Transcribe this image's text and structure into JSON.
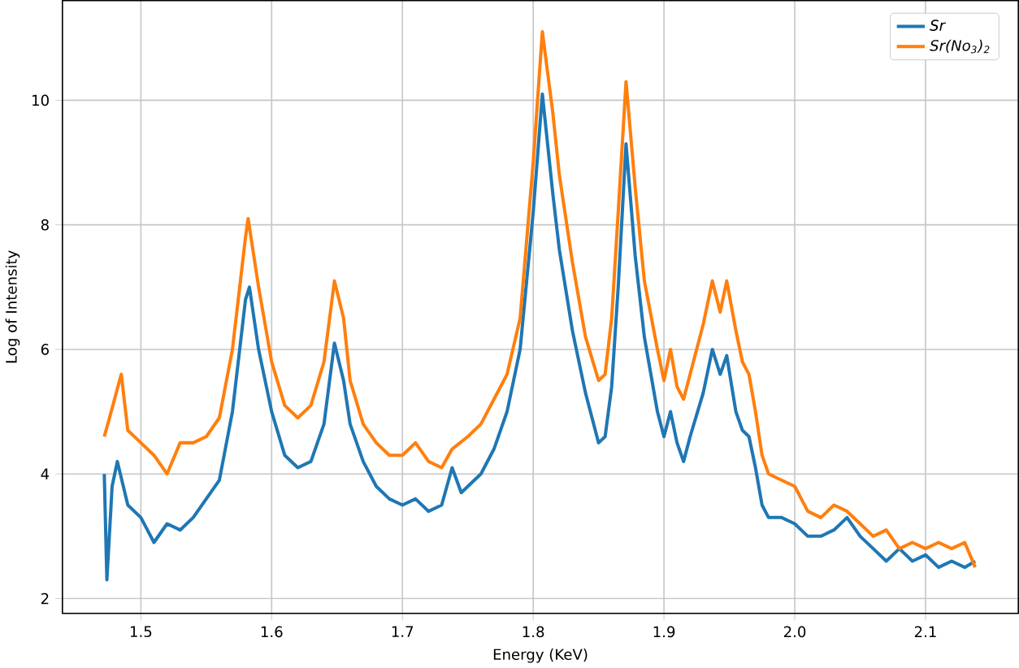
{
  "chart_data": {
    "type": "line",
    "xlabel": "Energy (KeV)",
    "ylabel": "Log of Intensity",
    "xlim": [
      1.44,
      2.171
    ],
    "ylim": [
      1.76,
      11.6
    ],
    "xticks": [
      {
        "value": 1.5,
        "label": "1.5"
      },
      {
        "value": 1.6,
        "label": "1.6"
      },
      {
        "value": 1.7,
        "label": "1.7"
      },
      {
        "value": 1.8,
        "label": "1.8"
      },
      {
        "value": 1.9,
        "label": "1.9"
      },
      {
        "value": 2.0,
        "label": "2.0"
      },
      {
        "value": 2.1,
        "label": "2.1"
      }
    ],
    "yticks": [
      2,
      4,
      6,
      8,
      10
    ],
    "grid": true,
    "legend": "top right",
    "series": [
      {
        "name": "Sr",
        "color": "#1f77b4",
        "x": [
          1.472,
          1.474,
          1.478,
          1.482,
          1.49,
          1.5,
          1.51,
          1.52,
          1.53,
          1.54,
          1.55,
          1.56,
          1.57,
          1.58,
          1.583,
          1.59,
          1.6,
          1.61,
          1.62,
          1.63,
          1.64,
          1.648,
          1.655,
          1.66,
          1.67,
          1.68,
          1.69,
          1.7,
          1.71,
          1.72,
          1.73,
          1.738,
          1.745,
          1.75,
          1.76,
          1.77,
          1.78,
          1.79,
          1.8,
          1.807,
          1.815,
          1.82,
          1.83,
          1.84,
          1.85,
          1.855,
          1.86,
          1.865,
          1.871,
          1.878,
          1.885,
          1.895,
          1.9,
          1.905,
          1.91,
          1.915,
          1.92,
          1.93,
          1.937,
          1.943,
          1.948,
          1.955,
          1.96,
          1.965,
          1.97,
          1.975,
          1.98,
          1.99,
          2.0,
          2.01,
          2.02,
          2.03,
          2.04,
          2.05,
          2.06,
          2.07,
          2.08,
          2.09,
          2.1,
          2.11,
          2.12,
          2.13,
          2.138
        ],
        "values": [
          4.0,
          2.3,
          3.8,
          4.2,
          3.5,
          3.3,
          2.9,
          3.2,
          3.1,
          3.3,
          3.6,
          3.9,
          5.0,
          6.8,
          7.0,
          6.0,
          5.0,
          4.3,
          4.1,
          4.2,
          4.8,
          6.1,
          5.5,
          4.8,
          4.2,
          3.8,
          3.6,
          3.5,
          3.6,
          3.4,
          3.5,
          4.1,
          3.7,
          3.8,
          4.0,
          4.4,
          5.0,
          6.0,
          8.2,
          10.1,
          8.5,
          7.6,
          6.3,
          5.3,
          4.5,
          4.6,
          5.4,
          7.0,
          9.3,
          7.5,
          6.2,
          5.0,
          4.6,
          5.0,
          4.5,
          4.2,
          4.6,
          5.3,
          6.0,
          5.6,
          5.9,
          5.0,
          4.7,
          4.6,
          4.1,
          3.5,
          3.3,
          3.3,
          3.2,
          3.0,
          3.0,
          3.1,
          3.3,
          3.0,
          2.8,
          2.6,
          2.8,
          2.6,
          2.7,
          2.5,
          2.6,
          2.5,
          2.6
        ]
      },
      {
        "name": "Sr(No$_{3}$)$_{2}$",
        "color": "#ff7f0e",
        "x": [
          1.472,
          1.476,
          1.485,
          1.49,
          1.5,
          1.51,
          1.52,
          1.53,
          1.54,
          1.55,
          1.56,
          1.57,
          1.58,
          1.582,
          1.59,
          1.6,
          1.61,
          1.62,
          1.63,
          1.64,
          1.648,
          1.655,
          1.66,
          1.67,
          1.68,
          1.69,
          1.7,
          1.71,
          1.72,
          1.73,
          1.738,
          1.75,
          1.76,
          1.77,
          1.78,
          1.79,
          1.8,
          1.807,
          1.815,
          1.82,
          1.83,
          1.84,
          1.85,
          1.855,
          1.86,
          1.865,
          1.871,
          1.878,
          1.885,
          1.895,
          1.9,
          1.905,
          1.91,
          1.915,
          1.92,
          1.93,
          1.937,
          1.943,
          1.948,
          1.955,
          1.96,
          1.965,
          1.97,
          1.975,
          1.98,
          1.99,
          2.0,
          2.01,
          2.02,
          2.03,
          2.04,
          2.05,
          2.06,
          2.07,
          2.08,
          2.09,
          2.1,
          2.11,
          2.12,
          2.13,
          2.138
        ],
        "values": [
          4.6,
          4.9,
          5.6,
          4.7,
          4.5,
          4.3,
          4.0,
          4.5,
          4.5,
          4.6,
          4.9,
          6.0,
          7.8,
          8.1,
          7.0,
          5.8,
          5.1,
          4.9,
          5.1,
          5.8,
          7.1,
          6.5,
          5.5,
          4.8,
          4.5,
          4.3,
          4.3,
          4.5,
          4.2,
          4.1,
          4.4,
          4.6,
          4.8,
          5.2,
          5.6,
          6.5,
          9.0,
          11.1,
          9.8,
          8.8,
          7.4,
          6.2,
          5.5,
          5.6,
          6.5,
          8.2,
          10.3,
          8.6,
          7.1,
          6.0,
          5.5,
          6.0,
          5.4,
          5.2,
          5.6,
          6.4,
          7.1,
          6.6,
          7.1,
          6.3,
          5.8,
          5.6,
          5.0,
          4.3,
          4.0,
          3.9,
          3.8,
          3.4,
          3.3,
          3.5,
          3.4,
          3.2,
          3.0,
          3.1,
          2.8,
          2.9,
          2.8,
          2.9,
          2.8,
          2.9,
          2.5
        ]
      }
    ]
  }
}
